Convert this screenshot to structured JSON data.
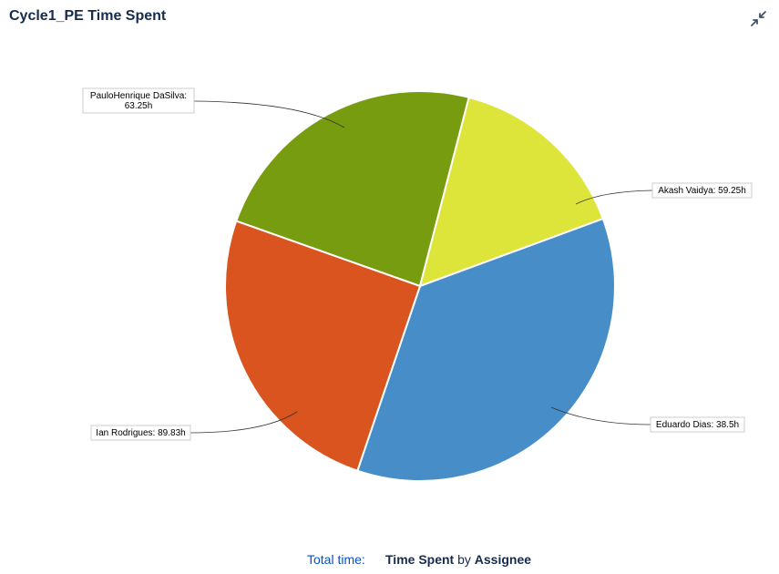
{
  "header": {
    "title": "Cycle1_PE Time Spent",
    "collapse_icon": "collapse-arrows-icon"
  },
  "footer": {
    "total_label": "Total time:",
    "statistic": "Time Spent",
    "by_word": "by",
    "field": "Assignee"
  },
  "chart_data": {
    "type": "pie",
    "title": "",
    "slices": [
      {
        "label": "Akash Vaidya: 59.25h",
        "name": "Akash Vaidya",
        "value": 59.25,
        "color": "#789c0f"
      },
      {
        "label": "Eduardo Dias: 38.5h",
        "name": "Eduardo Dias",
        "value": 38.5,
        "color": "#dde43a"
      },
      {
        "label": "Ian Rodrigues: 89.83h",
        "name": "Ian Rodrigues",
        "value": 89.83,
        "color": "#478dc8"
      },
      {
        "label": "PauloHenrique DaSilva: 63.25h",
        "label_lines": [
          "PauloHenrique DaSilva:",
          "63.25h"
        ],
        "name": "PauloHenrique DaSilva",
        "value": 63.25,
        "color": "#d9541e"
      }
    ]
  }
}
